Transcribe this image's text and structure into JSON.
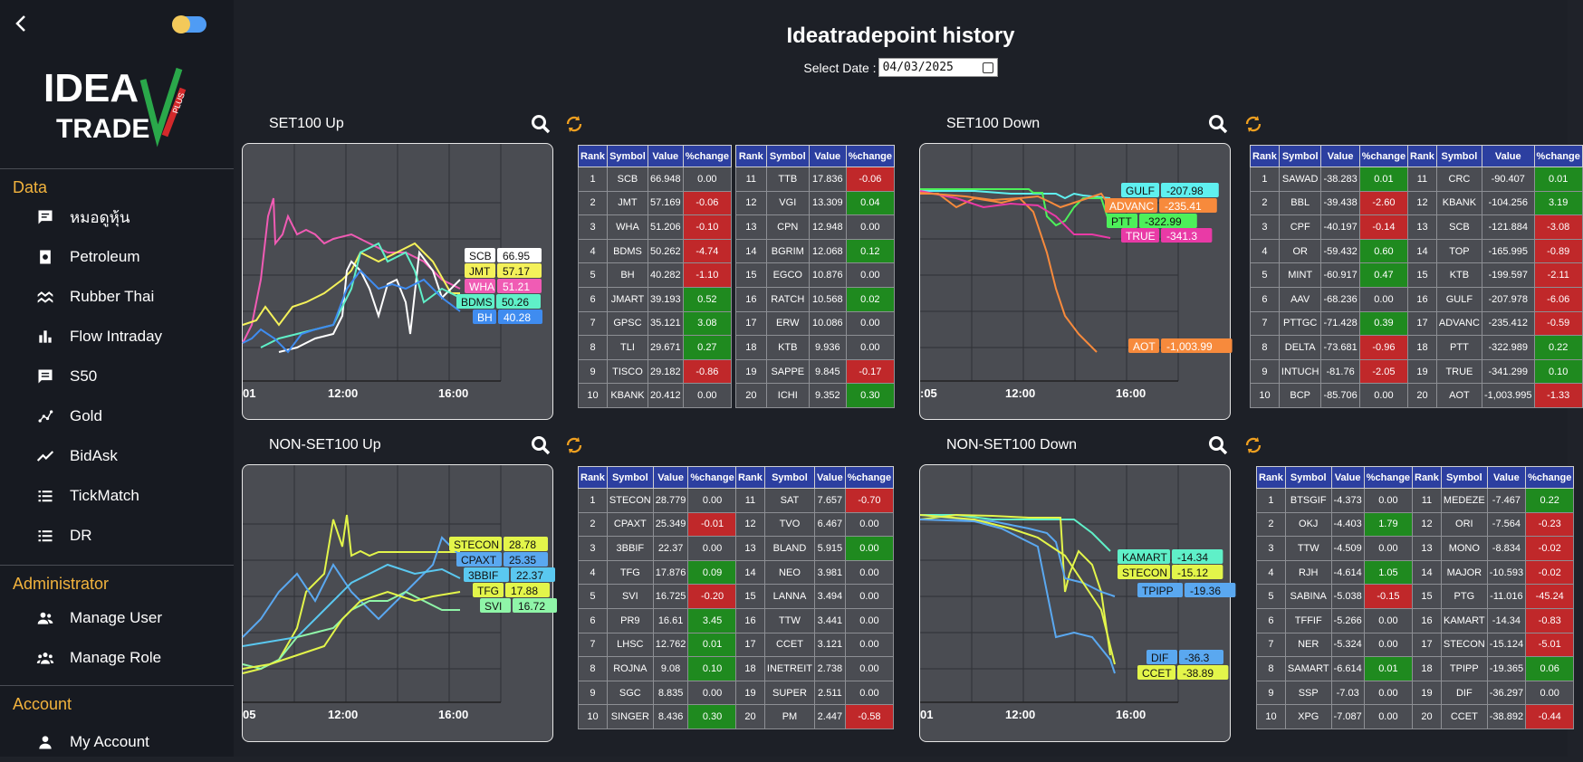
{
  "sidebar": {
    "logo_text": "IDEA TRADE PLUS",
    "sections": [
      {
        "title": "Data",
        "items": [
          {
            "label": "หมอดูหุ้น",
            "icon": "chat-icon"
          },
          {
            "label": "Petroleum",
            "icon": "fuel-icon"
          },
          {
            "label": "Rubber Thai",
            "icon": "wave-icon"
          },
          {
            "label": "Flow Intraday",
            "icon": "bar-chart-icon"
          },
          {
            "label": "S50",
            "icon": "message-icon"
          },
          {
            "label": "Gold",
            "icon": "scatter-icon"
          },
          {
            "label": "BidAsk",
            "icon": "trend-icon"
          },
          {
            "label": "TickMatch",
            "icon": "list-icon"
          },
          {
            "label": "DR",
            "icon": "list-icon"
          }
        ]
      },
      {
        "title": "Administrator",
        "items": [
          {
            "label": "Manage User",
            "icon": "users-icon"
          },
          {
            "label": "Manage Role",
            "icon": "group-icon"
          }
        ]
      },
      {
        "title": "Account",
        "items": [
          {
            "label": "My Account",
            "icon": "person-icon"
          }
        ]
      }
    ]
  },
  "header": {
    "title": "Ideatradepoint history",
    "date_label": "Select Date :",
    "date_value": "04/03/2025"
  },
  "colors": {
    "accent": "#f2b33d",
    "table_header": "#2c3fa0",
    "positive": "#1f8a1f",
    "negative": "#c0282a"
  },
  "panels": [
    {
      "title": "SET100 Up",
      "chart": {
        "x_ticks": [
          "01",
          "12:00",
          "16:00"
        ],
        "labels": [
          {
            "symbol": "SCB",
            "value": "66.95",
            "color": "#ffffff"
          },
          {
            "symbol": "JMT",
            "value": "57.17",
            "color": "#f4f15a"
          },
          {
            "symbol": "WHA",
            "value": "51.21",
            "color": "#f05bb4"
          },
          {
            "symbol": "BDMS",
            "value": "50.26",
            "color": "#5ff0c8"
          },
          {
            "symbol": "BH",
            "value": "40.28",
            "color": "#3f8cf0"
          }
        ]
      },
      "tables": [
        [
          {
            "rank": "1",
            "symbol": "SCB",
            "value": "66.948",
            "change": "0.00",
            "dir": "zero"
          },
          {
            "rank": "2",
            "symbol": "JMT",
            "value": "57.169",
            "change": "-0.06",
            "dir": "neg"
          },
          {
            "rank": "3",
            "symbol": "WHA",
            "value": "51.206",
            "change": "-0.10",
            "dir": "neg"
          },
          {
            "rank": "4",
            "symbol": "BDMS",
            "value": "50.262",
            "change": "-4.74",
            "dir": "neg"
          },
          {
            "rank": "5",
            "symbol": "BH",
            "value": "40.282",
            "change": "-1.10",
            "dir": "neg"
          },
          {
            "rank": "6",
            "symbol": "JMART",
            "value": "39.193",
            "change": "0.52",
            "dir": "pos"
          },
          {
            "rank": "7",
            "symbol": "GPSC",
            "value": "35.121",
            "change": "3.08",
            "dir": "pos"
          },
          {
            "rank": "8",
            "symbol": "TLI",
            "value": "29.671",
            "change": "0.27",
            "dir": "pos"
          },
          {
            "rank": "9",
            "symbol": "TISCO",
            "value": "29.182",
            "change": "-0.86",
            "dir": "neg"
          },
          {
            "rank": "10",
            "symbol": "KBANK",
            "value": "20.412",
            "change": "0.00",
            "dir": "zero"
          }
        ],
        [
          {
            "rank": "11",
            "symbol": "TTB",
            "value": "17.836",
            "change": "-0.06",
            "dir": "neg"
          },
          {
            "rank": "12",
            "symbol": "VGI",
            "value": "13.309",
            "change": "0.04",
            "dir": "pos"
          },
          {
            "rank": "13",
            "symbol": "CPN",
            "value": "12.948",
            "change": "0.00",
            "dir": "zero"
          },
          {
            "rank": "14",
            "symbol": "BGRIM",
            "value": "12.068",
            "change": "0.12",
            "dir": "pos"
          },
          {
            "rank": "15",
            "symbol": "EGCO",
            "value": "10.876",
            "change": "0.00",
            "dir": "zero"
          },
          {
            "rank": "16",
            "symbol": "RATCH",
            "value": "10.568",
            "change": "0.02",
            "dir": "pos"
          },
          {
            "rank": "17",
            "symbol": "ERW",
            "value": "10.086",
            "change": "0.00",
            "dir": "zero"
          },
          {
            "rank": "18",
            "symbol": "KTB",
            "value": "9.936",
            "change": "0.00",
            "dir": "zero"
          },
          {
            "rank": "19",
            "symbol": "SAPPE",
            "value": "9.845",
            "change": "-0.17",
            "dir": "neg"
          },
          {
            "rank": "20",
            "symbol": "ICHI",
            "value": "9.352",
            "change": "0.30",
            "dir": "pos"
          }
        ]
      ]
    },
    {
      "title": "SET100 Down",
      "chart": {
        "x_ticks": [
          ":05",
          "12:00",
          "16:00"
        ],
        "labels": [
          {
            "symbol": "GULF",
            "value": "-207.98",
            "color": "#5ff0f0"
          },
          {
            "symbol": "ADVANC",
            "value": "-235.41",
            "color": "#f78a3c"
          },
          {
            "symbol": "PTT",
            "value": "-322.99",
            "color": "#4df05a"
          },
          {
            "symbol": "TRUE",
            "value": "-341.3",
            "color": "#e93aa6"
          },
          {
            "symbol": "AOT",
            "value": "-1,003.99",
            "color": "#f78a3c"
          }
        ]
      },
      "tables": [
        [
          {
            "rank": "1",
            "symbol": "SAWAD",
            "value": "-38.283",
            "change": "0.01",
            "dir": "pos"
          },
          {
            "rank": "2",
            "symbol": "BBL",
            "value": "-39.438",
            "change": "-2.60",
            "dir": "neg"
          },
          {
            "rank": "3",
            "symbol": "CPF",
            "value": "-40.197",
            "change": "-0.14",
            "dir": "neg"
          },
          {
            "rank": "4",
            "symbol": "OR",
            "value": "-59.432",
            "change": "0.60",
            "dir": "pos"
          },
          {
            "rank": "5",
            "symbol": "MINT",
            "value": "-60.917",
            "change": "0.47",
            "dir": "pos"
          },
          {
            "rank": "6",
            "symbol": "AAV",
            "value": "-68.236",
            "change": "0.00",
            "dir": "zero"
          },
          {
            "rank": "7",
            "symbol": "PTTGC",
            "value": "-71.428",
            "change": "0.39",
            "dir": "pos"
          },
          {
            "rank": "8",
            "symbol": "DELTA",
            "value": "-73.681",
            "change": "-0.96",
            "dir": "neg"
          },
          {
            "rank": "9",
            "symbol": "INTUCH",
            "value": "-81.76",
            "change": "-2.05",
            "dir": "neg"
          },
          {
            "rank": "10",
            "symbol": "BCP",
            "value": "-85.706",
            "change": "0.00",
            "dir": "zero"
          }
        ],
        [
          {
            "rank": "11",
            "symbol": "CRC",
            "value": "-90.407",
            "change": "0.01",
            "dir": "pos"
          },
          {
            "rank": "12",
            "symbol": "KBANK",
            "value": "-104.256",
            "change": "3.19",
            "dir": "pos"
          },
          {
            "rank": "13",
            "symbol": "SCB",
            "value": "-121.884",
            "change": "-3.08",
            "dir": "neg"
          },
          {
            "rank": "14",
            "symbol": "TOP",
            "value": "-165.995",
            "change": "-0.89",
            "dir": "neg"
          },
          {
            "rank": "15",
            "symbol": "KTB",
            "value": "-199.597",
            "change": "-2.11",
            "dir": "neg"
          },
          {
            "rank": "16",
            "symbol": "GULF",
            "value": "-207.978",
            "change": "-6.06",
            "dir": "neg"
          },
          {
            "rank": "17",
            "symbol": "ADVANC",
            "value": "-235.412",
            "change": "-0.59",
            "dir": "neg"
          },
          {
            "rank": "18",
            "symbol": "PTT",
            "value": "-322.989",
            "change": "0.22",
            "dir": "pos"
          },
          {
            "rank": "19",
            "symbol": "TRUE",
            "value": "-341.299",
            "change": "0.10",
            "dir": "pos"
          },
          {
            "rank": "20",
            "symbol": "AOT",
            "value": "-1,003.995",
            "change": "-1.33",
            "dir": "neg"
          }
        ]
      ]
    },
    {
      "title": "NON-SET100 Up",
      "chart": {
        "x_ticks": [
          "05",
          "12:00",
          "16:00"
        ],
        "labels": [
          {
            "symbol": "STECON",
            "value": "28.78",
            "color": "#e3f54a"
          },
          {
            "symbol": "CPAXT",
            "value": "25.35",
            "color": "#5aa8f0"
          },
          {
            "symbol": "3BBIF",
            "value": "22.37",
            "color": "#5ac8f0"
          },
          {
            "symbol": "TFG",
            "value": "17.88",
            "color": "#e3f54a"
          },
          {
            "symbol": "SVI",
            "value": "16.72",
            "color": "#8ff5a8"
          }
        ]
      },
      "tables": [
        [
          {
            "rank": "1",
            "symbol": "STECON",
            "value": "28.779",
            "change": "0.00",
            "dir": "zero"
          },
          {
            "rank": "2",
            "symbol": "CPAXT",
            "value": "25.349",
            "change": "-0.01",
            "dir": "neg"
          },
          {
            "rank": "3",
            "symbol": "3BBIF",
            "value": "22.37",
            "change": "0.00",
            "dir": "zero"
          },
          {
            "rank": "4",
            "symbol": "TFG",
            "value": "17.876",
            "change": "0.09",
            "dir": "pos"
          },
          {
            "rank": "5",
            "symbol": "SVI",
            "value": "16.725",
            "change": "-0.20",
            "dir": "neg"
          },
          {
            "rank": "6",
            "symbol": "PR9",
            "value": "16.61",
            "change": "3.45",
            "dir": "pos"
          },
          {
            "rank": "7",
            "symbol": "LHSC",
            "value": "12.762",
            "change": "0.01",
            "dir": "pos"
          },
          {
            "rank": "8",
            "symbol": "ROJNA",
            "value": "9.08",
            "change": "0.10",
            "dir": "pos"
          },
          {
            "rank": "9",
            "symbol": "SGC",
            "value": "8.835",
            "change": "0.00",
            "dir": "zero"
          },
          {
            "rank": "10",
            "symbol": "SINGER",
            "value": "8.436",
            "change": "0.30",
            "dir": "pos"
          }
        ],
        [
          {
            "rank": "11",
            "symbol": "SAT",
            "value": "7.657",
            "change": "-0.70",
            "dir": "neg"
          },
          {
            "rank": "12",
            "symbol": "TVO",
            "value": "6.467",
            "change": "0.00",
            "dir": "zero"
          },
          {
            "rank": "13",
            "symbol": "BLAND",
            "value": "5.915",
            "change": "0.00",
            "dir": "pos"
          },
          {
            "rank": "14",
            "symbol": "NEO",
            "value": "3.981",
            "change": "0.00",
            "dir": "zero"
          },
          {
            "rank": "15",
            "symbol": "LANNA",
            "value": "3.494",
            "change": "0.00",
            "dir": "zero"
          },
          {
            "rank": "16",
            "symbol": "TTW",
            "value": "3.441",
            "change": "0.00",
            "dir": "zero"
          },
          {
            "rank": "17",
            "symbol": "CCET",
            "value": "3.121",
            "change": "0.00",
            "dir": "zero"
          },
          {
            "rank": "18",
            "symbol": "INETREIT",
            "value": "2.738",
            "change": "0.00",
            "dir": "zero"
          },
          {
            "rank": "19",
            "symbol": "SUPER",
            "value": "2.511",
            "change": "0.00",
            "dir": "zero"
          },
          {
            "rank": "20",
            "symbol": "PM",
            "value": "2.447",
            "change": "-0.58",
            "dir": "neg"
          }
        ]
      ]
    },
    {
      "title": "NON-SET100 Down",
      "chart": {
        "x_ticks": [
          "01",
          "12:00",
          "16:00"
        ],
        "labels": [
          {
            "symbol": "KAMART",
            "value": "-14.34",
            "color": "#5ff0c8"
          },
          {
            "symbol": "STECON",
            "value": "-15.12",
            "color": "#e3f54a"
          },
          {
            "symbol": "TPIPP",
            "value": "-19.36",
            "color": "#5aa8f0"
          },
          {
            "symbol": "DIF",
            "value": "-36.3",
            "color": "#5aa8f0"
          },
          {
            "symbol": "CCET",
            "value": "-38.89",
            "color": "#e3f54a"
          }
        ]
      },
      "tables": [
        [
          {
            "rank": "1",
            "symbol": "BTSGIF",
            "value": "-4.373",
            "change": "0.00",
            "dir": "zero"
          },
          {
            "rank": "2",
            "symbol": "OKJ",
            "value": "-4.403",
            "change": "1.79",
            "dir": "pos"
          },
          {
            "rank": "3",
            "symbol": "TTW",
            "value": "-4.509",
            "change": "0.00",
            "dir": "zero"
          },
          {
            "rank": "4",
            "symbol": "RJH",
            "value": "-4.614",
            "change": "1.05",
            "dir": "pos"
          },
          {
            "rank": "5",
            "symbol": "SABINA",
            "value": "-5.038",
            "change": "-0.15",
            "dir": "neg"
          },
          {
            "rank": "6",
            "symbol": "TFFIF",
            "value": "-5.266",
            "change": "0.00",
            "dir": "zero"
          },
          {
            "rank": "7",
            "symbol": "NER",
            "value": "-5.324",
            "change": "0.00",
            "dir": "zero"
          },
          {
            "rank": "8",
            "symbol": "SAMART",
            "value": "-6.614",
            "change": "0.01",
            "dir": "pos"
          },
          {
            "rank": "9",
            "symbol": "SSP",
            "value": "-7.03",
            "change": "0.00",
            "dir": "zero"
          },
          {
            "rank": "10",
            "symbol": "XPG",
            "value": "-7.087",
            "change": "0.00",
            "dir": "zero"
          }
        ],
        [
          {
            "rank": "11",
            "symbol": "MEDEZE",
            "value": "-7.467",
            "change": "0.22",
            "dir": "pos"
          },
          {
            "rank": "12",
            "symbol": "ORI",
            "value": "-7.564",
            "change": "-0.23",
            "dir": "neg"
          },
          {
            "rank": "13",
            "symbol": "MONO",
            "value": "-8.834",
            "change": "-0.02",
            "dir": "neg"
          },
          {
            "rank": "14",
            "symbol": "MAJOR",
            "value": "-10.593",
            "change": "-0.02",
            "dir": "neg"
          },
          {
            "rank": "15",
            "symbol": "PTG",
            "value": "-11.016",
            "change": "-45.24",
            "dir": "neg"
          },
          {
            "rank": "16",
            "symbol": "KAMART",
            "value": "-14.34",
            "change": "-0.83",
            "dir": "neg"
          },
          {
            "rank": "17",
            "symbol": "STECON",
            "value": "-15.124",
            "change": "-5.01",
            "dir": "neg"
          },
          {
            "rank": "18",
            "symbol": "TPIPP",
            "value": "-19.365",
            "change": "0.06",
            "dir": "pos"
          },
          {
            "rank": "19",
            "symbol": "DIF",
            "value": "-36.297",
            "change": "0.00",
            "dir": "zero"
          },
          {
            "rank": "20",
            "symbol": "CCET",
            "value": "-38.892",
            "change": "-0.44",
            "dir": "neg"
          }
        ]
      ]
    }
  ],
  "table_headers": {
    "rank": "Rank",
    "symbol": "Symbol",
    "value": "Value",
    "change": "%change"
  }
}
